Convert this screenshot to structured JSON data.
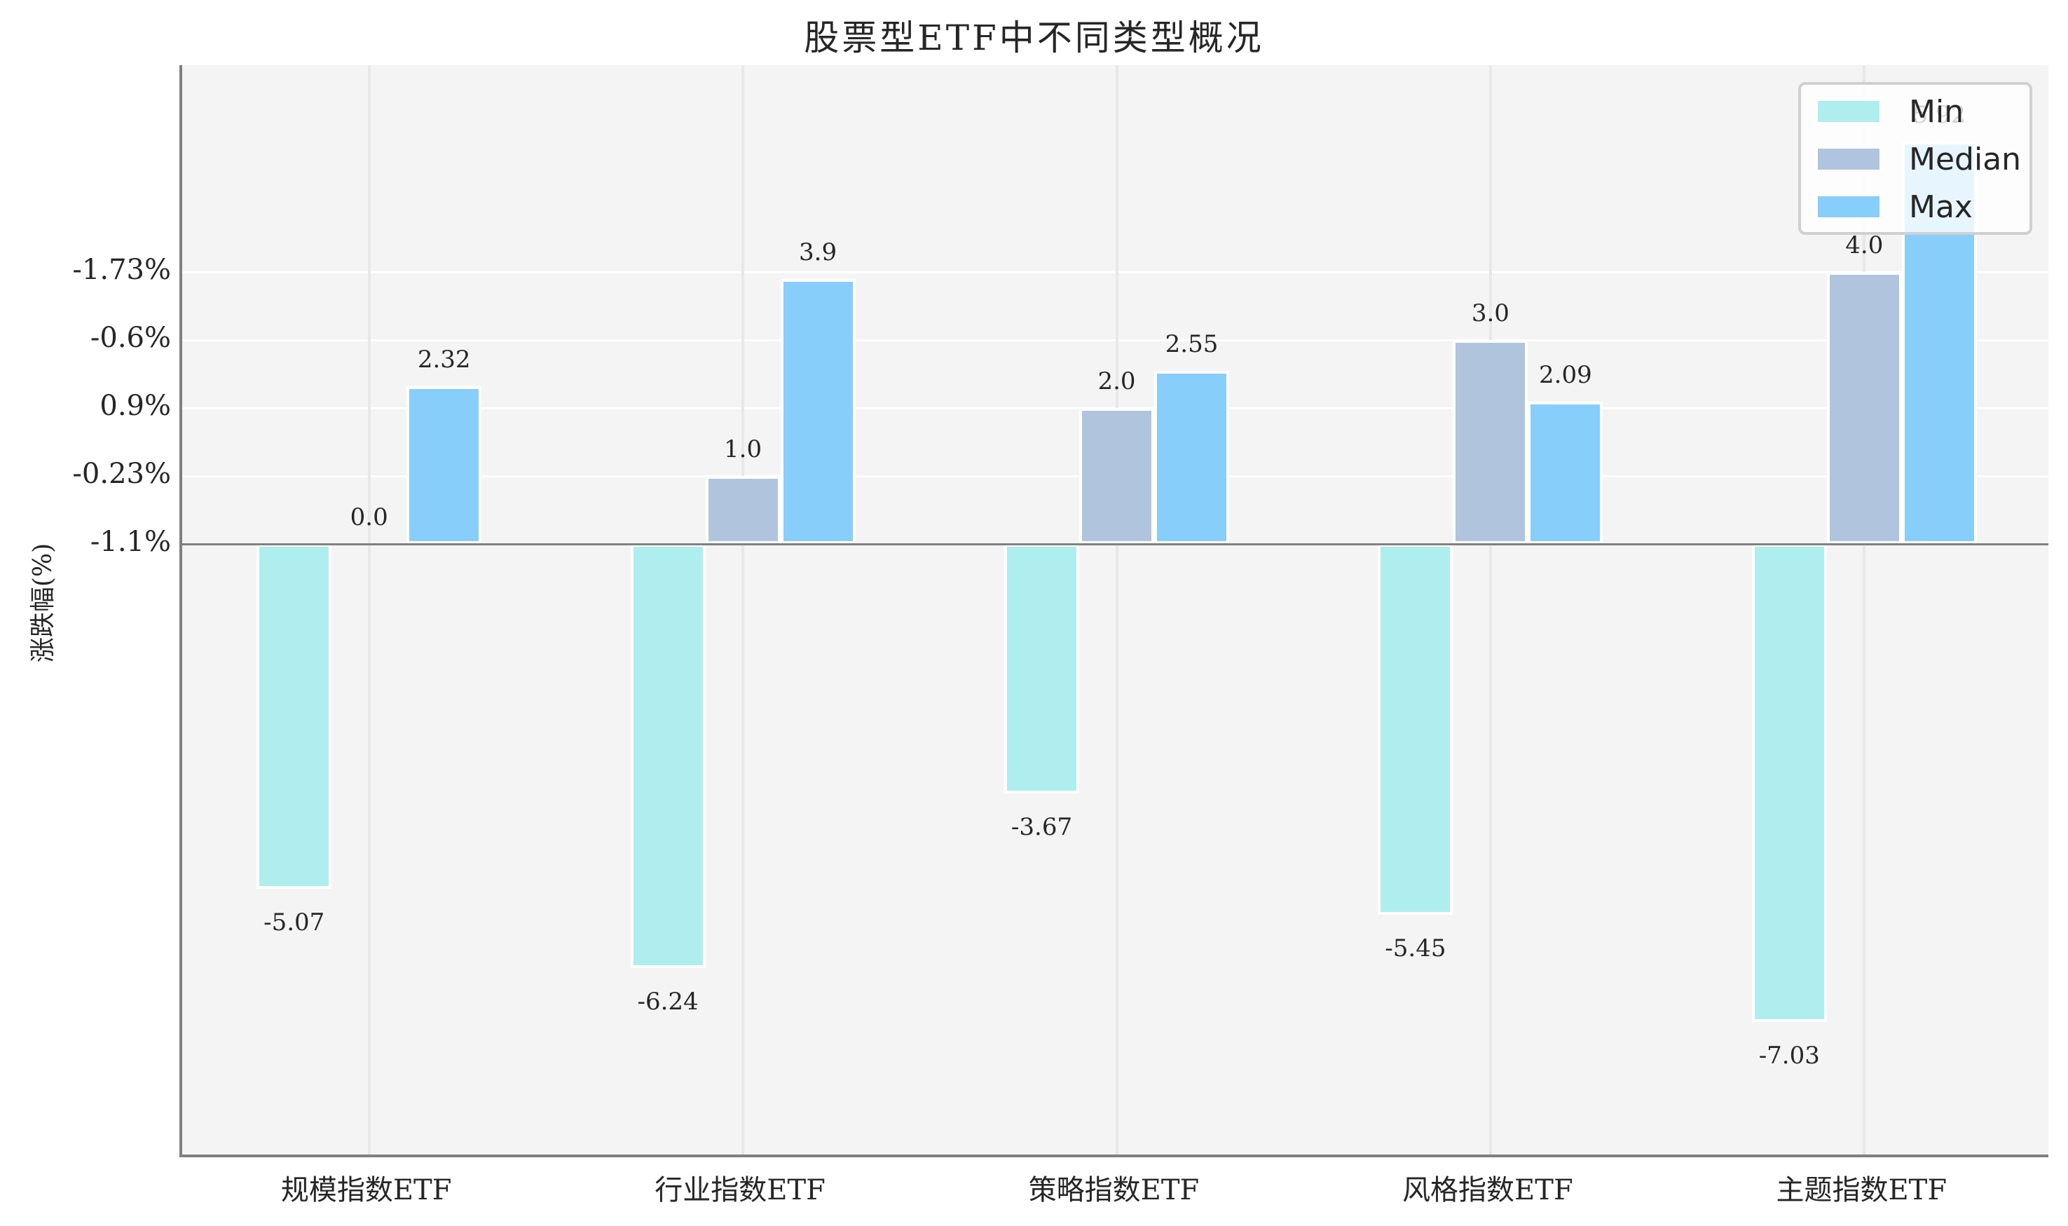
{
  "chart_data": {
    "type": "bar",
    "title": "股票型ETF中不同类型概况",
    "xlabel": "",
    "ylabel": "涨跌幅(%)",
    "categories": [
      "规模指数ETF",
      "行业指数ETF",
      "策略指数ETF",
      "风格指数ETF",
      "主题指数ETF"
    ],
    "series": [
      {
        "name": "Min",
        "color": "#afeeee",
        "values": [
          -5.07,
          -6.24,
          -3.67,
          -5.45,
          -7.03
        ]
      },
      {
        "name": "Median",
        "color": "#b0c4de",
        "values": [
          0.0,
          1.0,
          2.0,
          3.0,
          4.0
        ]
      },
      {
        "name": "Max",
        "color": "#87cefa",
        "values": [
          2.32,
          3.9,
          2.55,
          2.09,
          5.92
        ]
      }
    ],
    "value_labels": {
      "Min": [
        "-5.07",
        "-6.24",
        "-3.67",
        "-5.45",
        "-7.03"
      ],
      "Median": [
        "0.0",
        "1.0",
        "2.0",
        "3.0",
        "4.0"
      ],
      "Max": [
        "2.32",
        "3.9",
        "2.55",
        "2.09",
        "5.92"
      ]
    },
    "ytick_positions": [
      0,
      1,
      2,
      3,
      4
    ],
    "ytick_labels": [
      "-1.1%",
      "-0.23%",
      "0.9%",
      "-0.6%",
      "-1.73%"
    ],
    "ylim": [
      -9.02,
      7.04
    ],
    "grid": true,
    "legend_position": "upper right",
    "colors": {
      "background": "#f4f4f4",
      "axis": "#808080",
      "grid": "#ffffff"
    }
  },
  "title": "股票型ETF中不同类型概况",
  "ylabel": "涨跌幅(%)",
  "legend": {
    "items": [
      {
        "label": "Min",
        "color": "#afeeee"
      },
      {
        "label": "Median",
        "color": "#b0c4de"
      },
      {
        "label": "Max",
        "color": "#87cefa"
      }
    ]
  }
}
